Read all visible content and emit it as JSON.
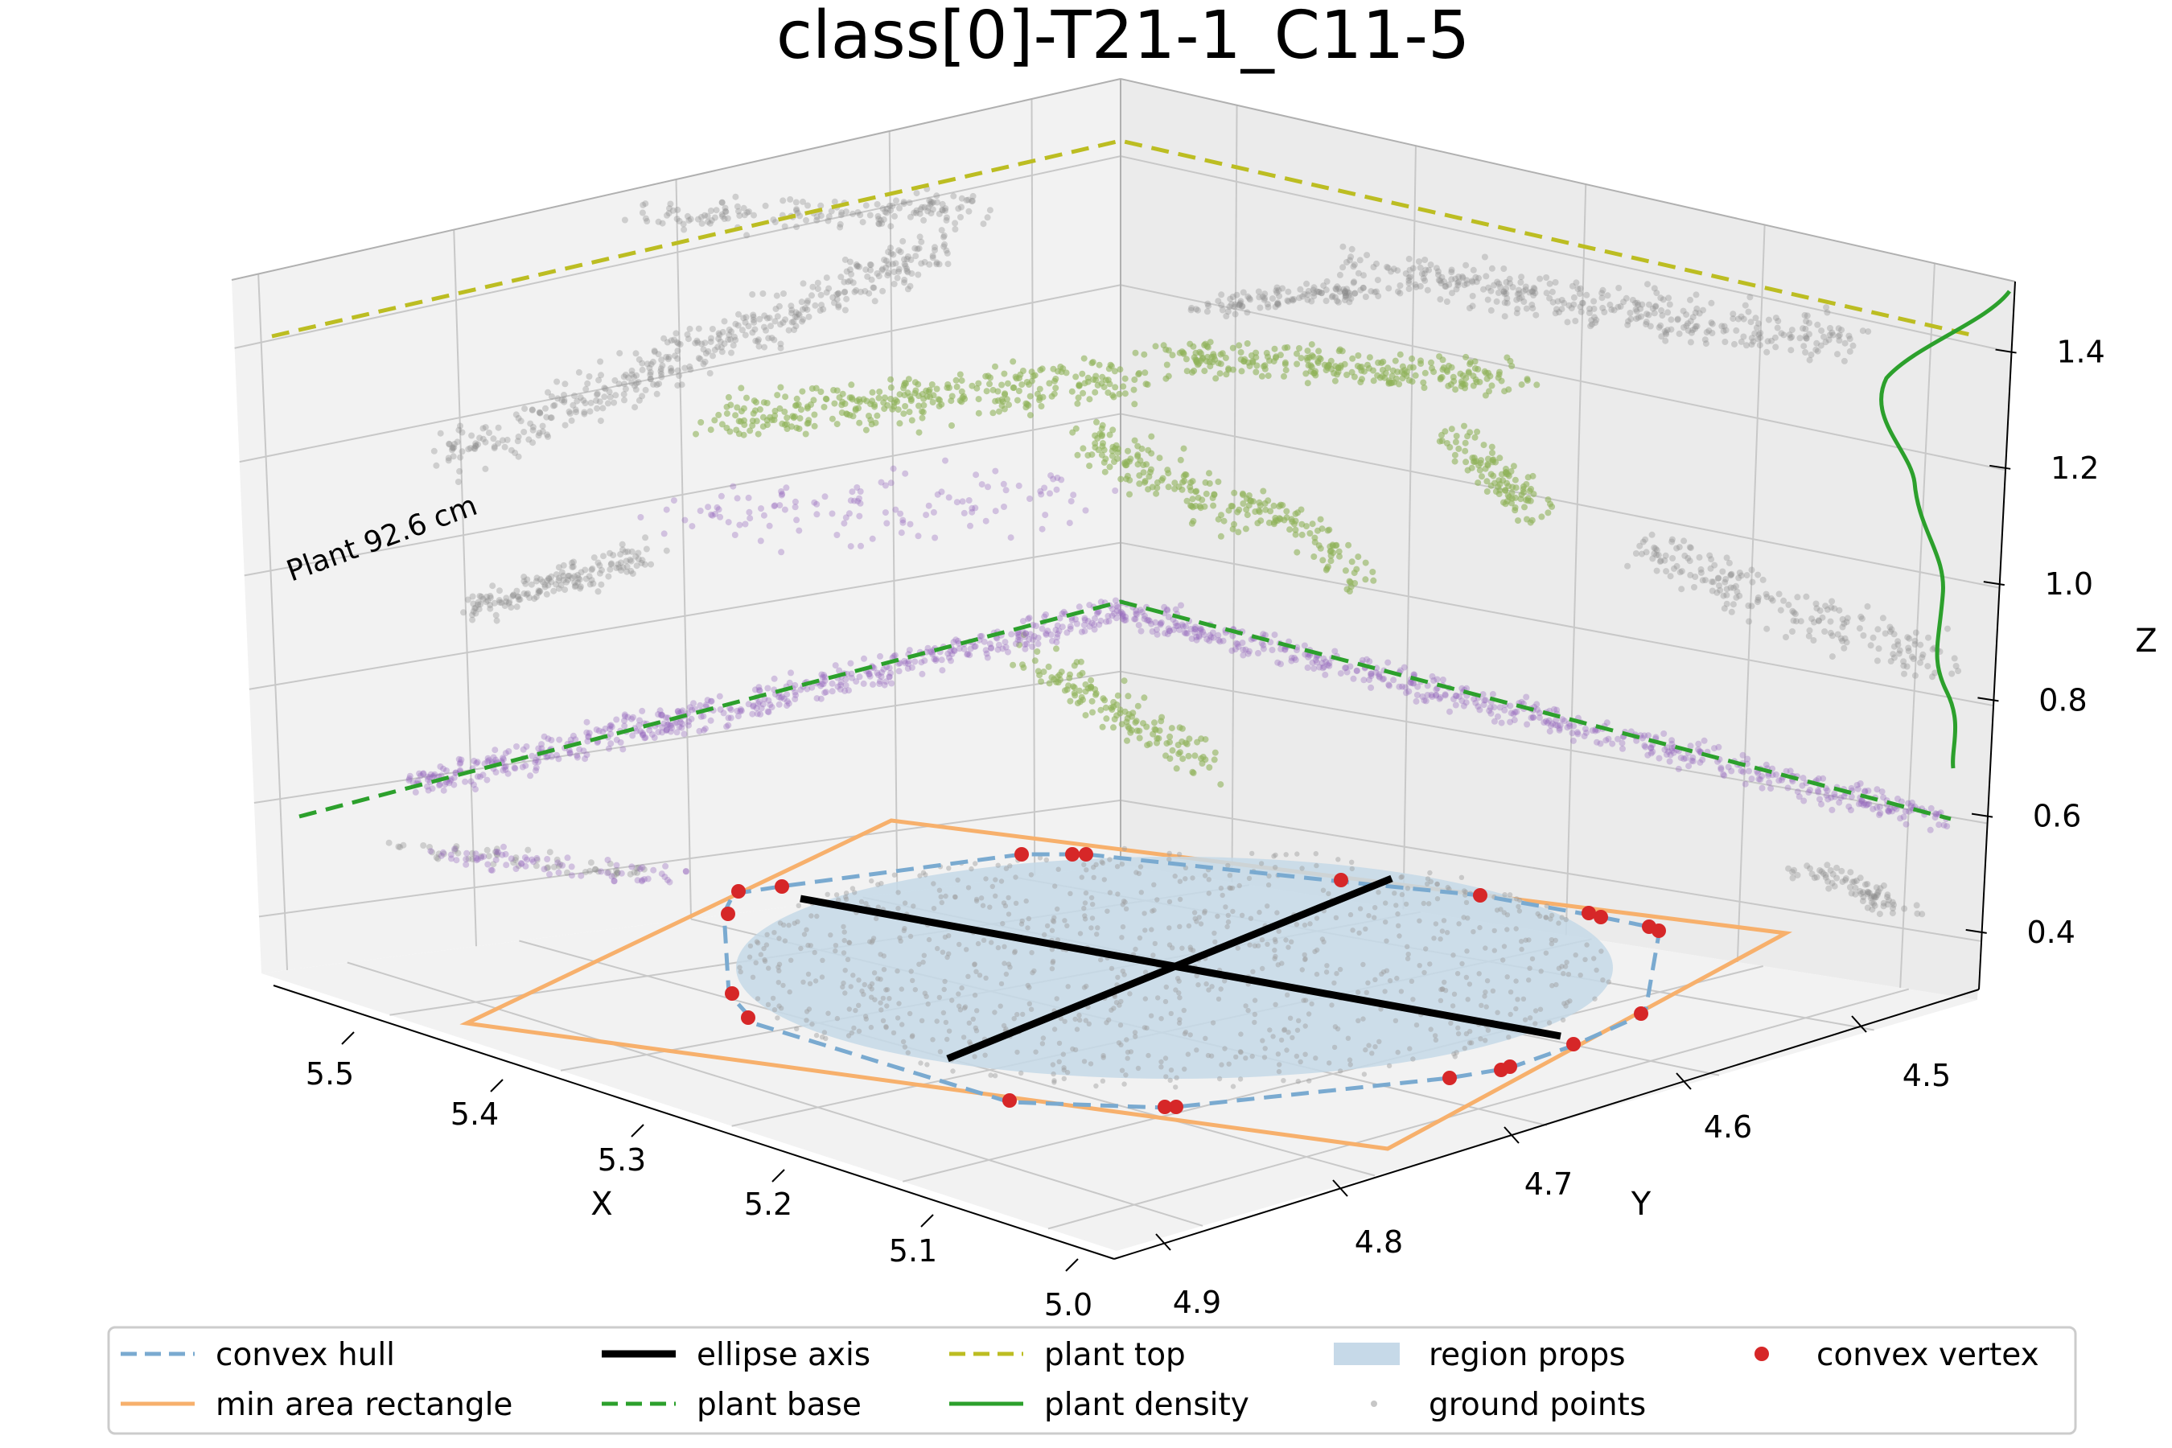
{
  "chart_data": {
    "type": "scatter",
    "projection": "3d",
    "title": "class[0]-T21-1_C11-5",
    "xlabel": "X",
    "ylabel": "Y",
    "zlabel": "Z",
    "x_ticks": [
      "5.0",
      "5.1",
      "5.2",
      "5.3",
      "5.4",
      "5.5"
    ],
    "y_ticks": [
      "4.9",
      "4.8",
      "4.7",
      "4.6",
      "4.5"
    ],
    "z_ticks": [
      "0.4",
      "0.6",
      "0.8",
      "1.0",
      "1.2",
      "1.4"
    ],
    "xlim": [
      4.97,
      5.57
    ],
    "ylim": [
      4.43,
      4.92
    ],
    "zlim": [
      0.3,
      1.52
    ],
    "annotation": "Plant 92.6 cm",
    "plant_base_z": 0.63,
    "plant_top_z": 1.52,
    "ellipse": {
      "center": [
        5.23,
        4.68
      ],
      "major_axis_deg": -18
    },
    "series": [
      {
        "name": "convex hull",
        "style": "dashed",
        "color": "#7aaad0"
      },
      {
        "name": "min area rectangle",
        "style": "solid",
        "color": "#f7b06c"
      },
      {
        "name": "ellipse axis",
        "style": "solid",
        "color": "#000000"
      },
      {
        "name": "plant base",
        "style": "dashed",
        "color": "#2ca02c"
      },
      {
        "name": "plant top",
        "style": "dashed",
        "color": "#bcbd22"
      },
      {
        "name": "plant density",
        "style": "solid",
        "color": "#2ca02c"
      },
      {
        "name": "region props",
        "style": "fill",
        "color": "#c6d9e8"
      },
      {
        "name": "ground points",
        "style": "marker",
        "color": "#c7c7c7"
      },
      {
        "name": "convex vertex",
        "style": "marker",
        "color": "#d62728"
      }
    ],
    "convex_vertices_count": 26,
    "grid": true,
    "legend": "bottom"
  },
  "colors": {
    "hull": "#7aaad0",
    "rect": "#f7b06c",
    "axis": "#000000",
    "base": "#2ca02c",
    "top": "#bcbd22",
    "density": "#2ca02c",
    "region": "#c6d9e8",
    "ground": "#c7c7c7",
    "vertex": "#d62728",
    "plant_purple": "#9467bd",
    "plant_green": "#8fb35a",
    "plant_grey": "#8c8c8c"
  }
}
